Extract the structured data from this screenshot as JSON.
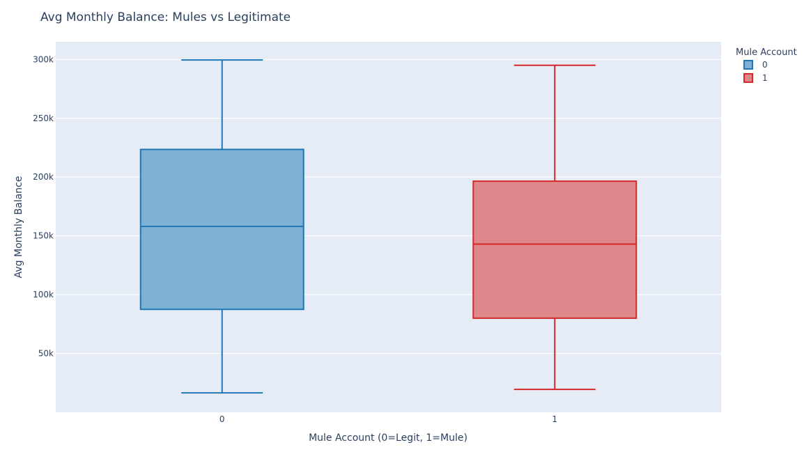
{
  "chart_data": {
    "type": "box",
    "title": "Avg Monthly Balance: Mules vs Legitimate",
    "xlabel": "Mule Account (0=Legit, 1=Mule)",
    "ylabel": "Avg Monthly Balance",
    "ylim": [
      0,
      315000
    ],
    "yticks": [
      50000,
      100000,
      150000,
      200000,
      250000,
      300000
    ],
    "ytick_labels": [
      "50k",
      "100k",
      "150k",
      "200k",
      "250k",
      "300k"
    ],
    "categories": [
      "0",
      "1"
    ],
    "grid": true,
    "legend": {
      "title": "Mule Account",
      "placement": "top-right"
    },
    "series": [
      {
        "name": "0",
        "color": "#1f77b4",
        "fill": "#7fb0d6",
        "min": 16500,
        "q1": 87500,
        "median": 158000,
        "q3": 223500,
        "max": 299500
      },
      {
        "name": "1",
        "color": "#d62728",
        "fill": "#de888b",
        "min": 19500,
        "q1": 80000,
        "median": 143000,
        "q3": 196500,
        "max": 295000
      }
    ]
  }
}
